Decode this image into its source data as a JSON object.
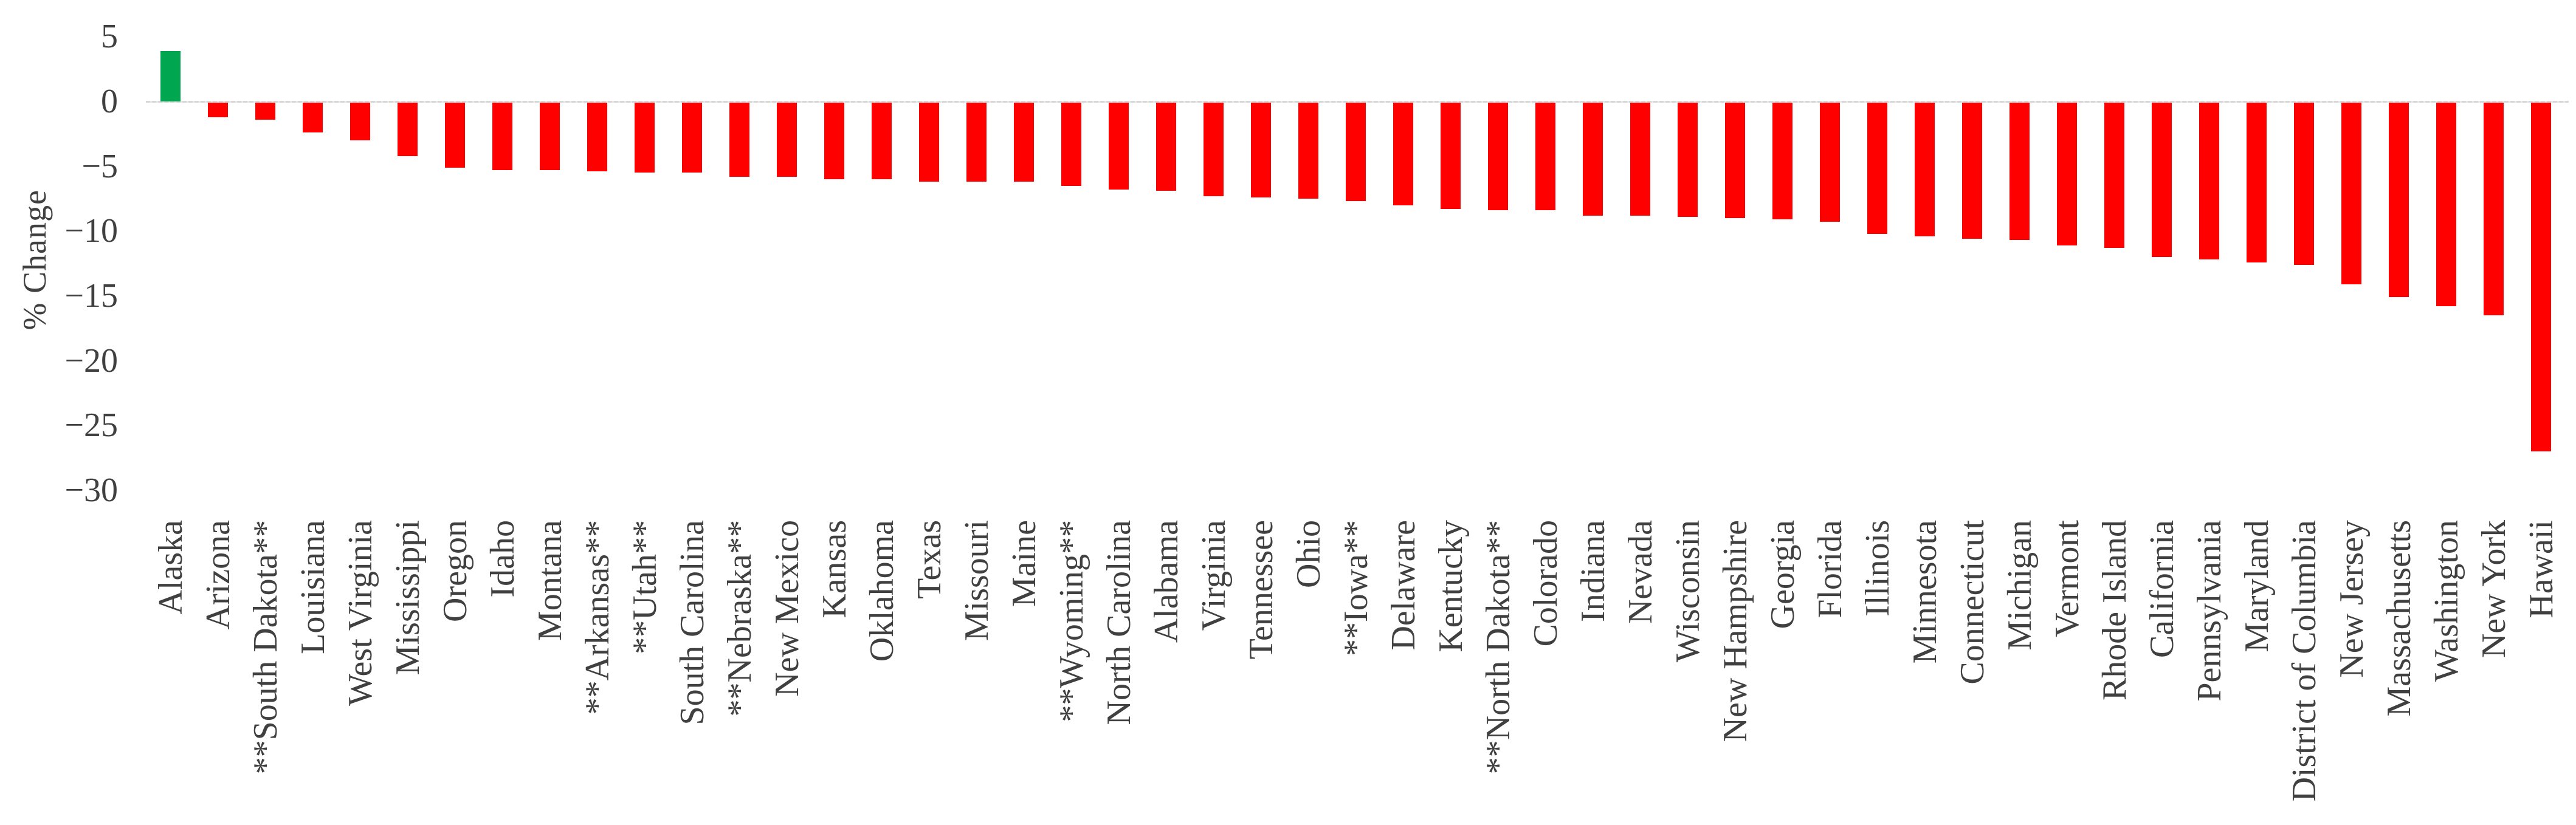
{
  "chart_data": {
    "type": "bar",
    "title": "",
    "ylabel": "% Change",
    "xlabel": "",
    "ylim": [
      -30,
      5
    ],
    "grid": false,
    "legend": "none",
    "y_ticks": [
      {
        "label": "5",
        "value": 5
      },
      {
        "label": "0",
        "value": 0
      },
      {
        "label": "−5",
        "value": -5
      },
      {
        "label": "−10",
        "value": -10
      },
      {
        "label": "−15",
        "value": -15
      },
      {
        "label": "−20",
        "value": -20
      },
      {
        "label": "−25",
        "value": -25
      },
      {
        "label": "−30",
        "value": -30
      }
    ],
    "categories": [
      "Alaska",
      "Arizona",
      "**South Dakota**",
      "Louisiana",
      "West Virginia",
      "Mississippi",
      "Oregon",
      "Idaho",
      "Montana",
      "**Arkansas**",
      "**Utah**",
      "South Carolina",
      "**Nebraska**",
      "New Mexico",
      "Kansas",
      "Oklahoma",
      "Texas",
      "Missouri",
      "Maine",
      "**Wyoming**",
      "North Carolina",
      "Alabama",
      "Virginia",
      "Tennessee",
      "Ohio",
      "**Iowa**",
      "Delaware",
      "Kentucky",
      "**North Dakota**",
      "Colorado",
      "Indiana",
      "Nevada",
      "Wisconsin",
      "New Hampshire",
      "Georgia",
      "Florida",
      "Illinois",
      "Minnesota",
      "Connecticut",
      "Michigan",
      "Vermont",
      "Rhode Island",
      "California",
      "Pennsylvania",
      "Maryland",
      "District of Columbia",
      "New Jersey",
      "Massachusetts",
      "Washington",
      "New York",
      "Hawaii"
    ],
    "values": [
      3.9,
      -1.2,
      -1.4,
      -2.4,
      -3.0,
      -4.2,
      -5.1,
      -5.3,
      -5.3,
      -5.4,
      -5.5,
      -5.5,
      -5.8,
      -5.8,
      -6.0,
      -6.0,
      -6.2,
      -6.2,
      -6.2,
      -6.5,
      -6.8,
      -6.9,
      -7.3,
      -7.4,
      -7.5,
      -7.7,
      -8.0,
      -8.3,
      -8.4,
      -8.4,
      -8.8,
      -8.8,
      -8.9,
      -9.0,
      -9.1,
      -9.3,
      -10.2,
      -10.4,
      -10.6,
      -10.7,
      -11.1,
      -11.3,
      -12.0,
      -12.2,
      -12.4,
      -12.6,
      -14.1,
      -15.1,
      -15.8,
      -16.5,
      -27.0
    ],
    "colors": {
      "positive": "#00A650",
      "negative": "#FF0000",
      "axis_line": "#D8D8D8",
      "text": "#404040"
    }
  }
}
